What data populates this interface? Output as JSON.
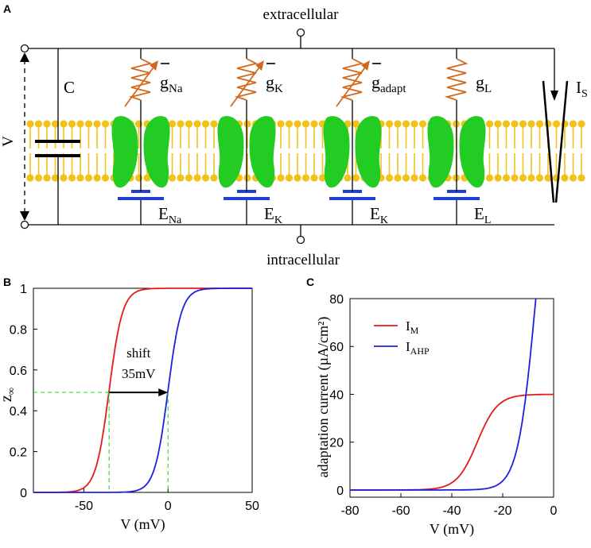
{
  "panel_a": {
    "label": "A",
    "extracellular": "extracellular",
    "intracellular": "intracellular",
    "voltage_label": "V",
    "capacitor_label": "C",
    "conductances": [
      {
        "main": "g",
        "sub": "Na",
        "bar": true
      },
      {
        "main": "g",
        "sub": "K",
        "bar": true
      },
      {
        "main": "g",
        "sub": "adapt",
        "bar": true
      },
      {
        "main": "g",
        "sub": "L",
        "bar": false
      }
    ],
    "reversals": [
      {
        "main": "E",
        "sub": "Na"
      },
      {
        "main": "E",
        "sub": "K"
      },
      {
        "main": "E",
        "sub": "K"
      },
      {
        "main": "E",
        "sub": "L"
      }
    ],
    "current_source": {
      "main": "I",
      "sub": "S"
    },
    "colors": {
      "membrane": "#f2c21a",
      "channel": "#22cc22",
      "resistor": "#d2691e",
      "battery": "#1f3fd6",
      "wire": "#000000"
    }
  },
  "chart_data": [
    {
      "panel": "B",
      "type": "line",
      "xlabel": "V (mV)",
      "ylabel": "z",
      "ylabel_sub": "∞",
      "xlim": [
        -80,
        50
      ],
      "ylim": [
        0,
        1
      ],
      "xticks": [
        "-50",
        "0",
        "50"
      ],
      "yticks": [
        "0",
        "0.2",
        "0.4",
        "0.6",
        "0.8",
        "1"
      ],
      "xtick_values": [
        -50,
        0,
        50
      ],
      "ytick_values": [
        0,
        0.2,
        0.4,
        0.6,
        0.8,
        1
      ],
      "series": [
        {
          "name": "red",
          "color": "#e41a1c",
          "v_half": -35,
          "slope": 4
        },
        {
          "name": "blue",
          "color": "#1f1fe0",
          "v_half": 0,
          "slope": 4
        }
      ],
      "guides": {
        "color": "#33dd33",
        "y": 0.49,
        "x1": -35,
        "x2": 0
      },
      "annotation": {
        "line1": "shift",
        "line2": "35mV",
        "x_from": -35,
        "x_to": 0,
        "y": 0.49
      }
    },
    {
      "panel": "C",
      "type": "line",
      "xlabel": "V (mV)",
      "ylabel": "adaptation current (µA/cm²)",
      "xlim": [
        -80,
        0
      ],
      "ylim": [
        -3,
        80
      ],
      "xticks": [
        "-80",
        "-60",
        "-40",
        "-20",
        "0"
      ],
      "yticks": [
        "0",
        "20",
        "40",
        "60",
        "80"
      ],
      "xtick_values": [
        -80,
        -60,
        -40,
        -20,
        0
      ],
      "ytick_values": [
        0,
        20,
        40,
        60,
        80
      ],
      "series": [
        {
          "name": "I",
          "sub": "M",
          "color": "#e41a1c",
          "v_half": -30,
          "slope": 4,
          "scale": 40
        },
        {
          "name": "I",
          "sub": "AHP",
          "color": "#1f1fe0",
          "v_half": -7,
          "slope": 3.5,
          "scale": 160
        }
      ],
      "legend_position": "top-left"
    }
  ]
}
